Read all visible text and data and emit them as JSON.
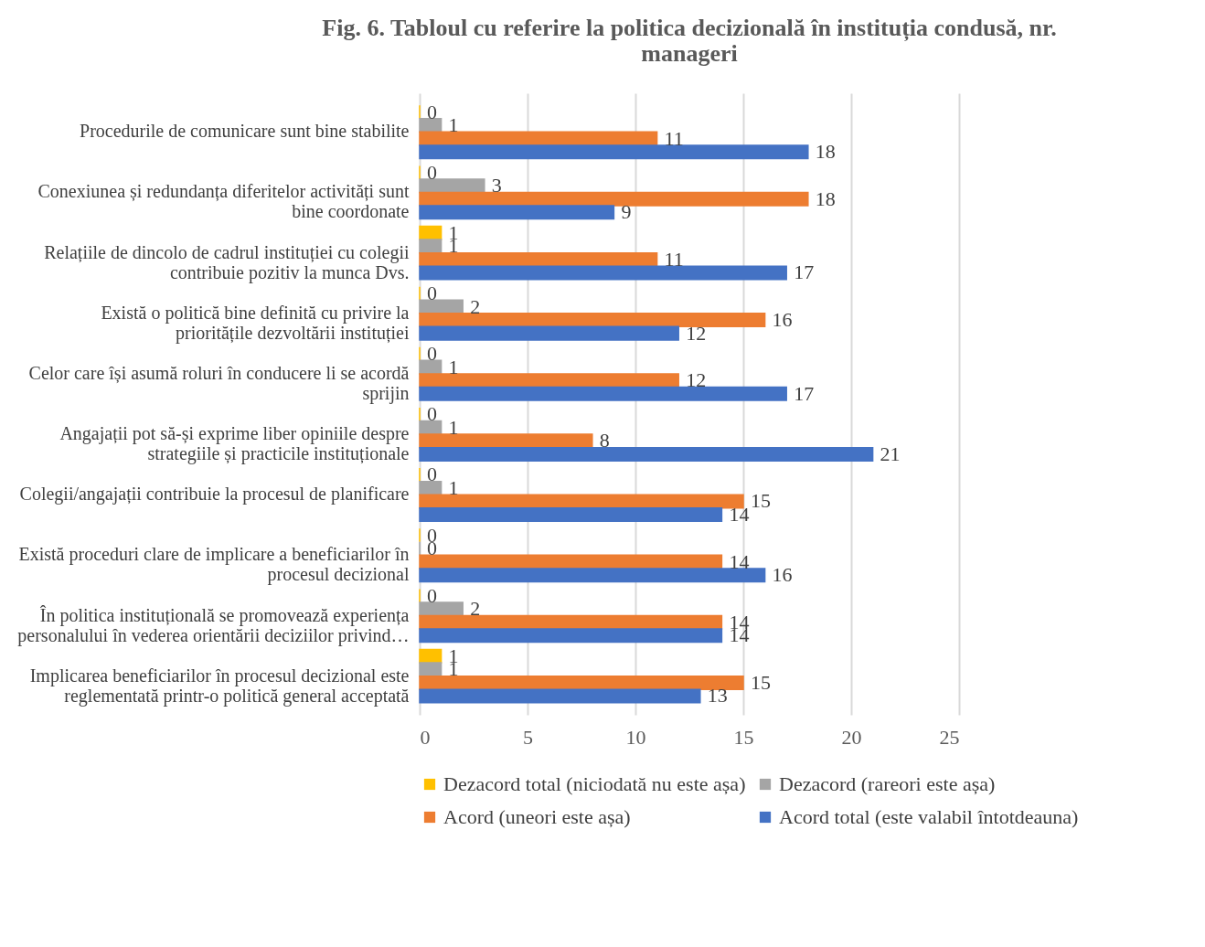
{
  "chart_data": {
    "type": "bar",
    "orientation": "horizontal",
    "title": "Fig. 6. Tabloul cu referire la politica decizională în instituția condusă, nr. manageri",
    "categories": [
      "Procedurile de comunicare sunt bine stabilite",
      "Conexiunea și redundanța diferitelor activități sunt bine coordonate",
      "Relațiile de dincolo de cadrul instituției cu colegii contribuie pozitiv la munca Dvs.",
      "Există o politică bine definită cu privire la prioritățile dezvoltării instituției",
      "Celor care își asumă roluri în conducere li se acordă sprijin",
      "Angajații pot să-și exprime liber opiniile despre strategiile și practicile instituționale",
      "Colegii/angajații contribuie la procesul de planificare",
      "Există proceduri clare de implicare a beneficiarilor în procesul decizional",
      "În politica instituțională se promovează experiența personalului în vederea orientării deciziilor privind…",
      "Implicarea beneficiarilor în procesul decizional este reglementată printr-o politică general acceptată"
    ],
    "series": [
      {
        "name": "Dezacord total (niciodată nu este așa)",
        "color": "#ffc000",
        "values": [
          0,
          0,
          1,
          0,
          0,
          0,
          0,
          0,
          0,
          1
        ]
      },
      {
        "name": "Dezacord (rareori este așa)",
        "color": "#a5a5a5",
        "values": [
          1,
          3,
          1,
          2,
          1,
          1,
          1,
          0,
          2,
          1
        ]
      },
      {
        "name": "Acord (uneori este așa)",
        "color": "#ed7d31",
        "values": [
          11,
          18,
          11,
          16,
          12,
          8,
          15,
          14,
          14,
          15
        ]
      },
      {
        "name": "Acord total (este valabil întotdeauna)",
        "color": "#4472c4",
        "values": [
          18,
          9,
          17,
          12,
          17,
          21,
          14,
          16,
          14,
          13
        ]
      }
    ],
    "xlim": [
      0,
      25
    ],
    "xticks": [
      0,
      5,
      10,
      15,
      20,
      25
    ],
    "grid": "x",
    "legend": "bottom",
    "data_labels": true
  }
}
